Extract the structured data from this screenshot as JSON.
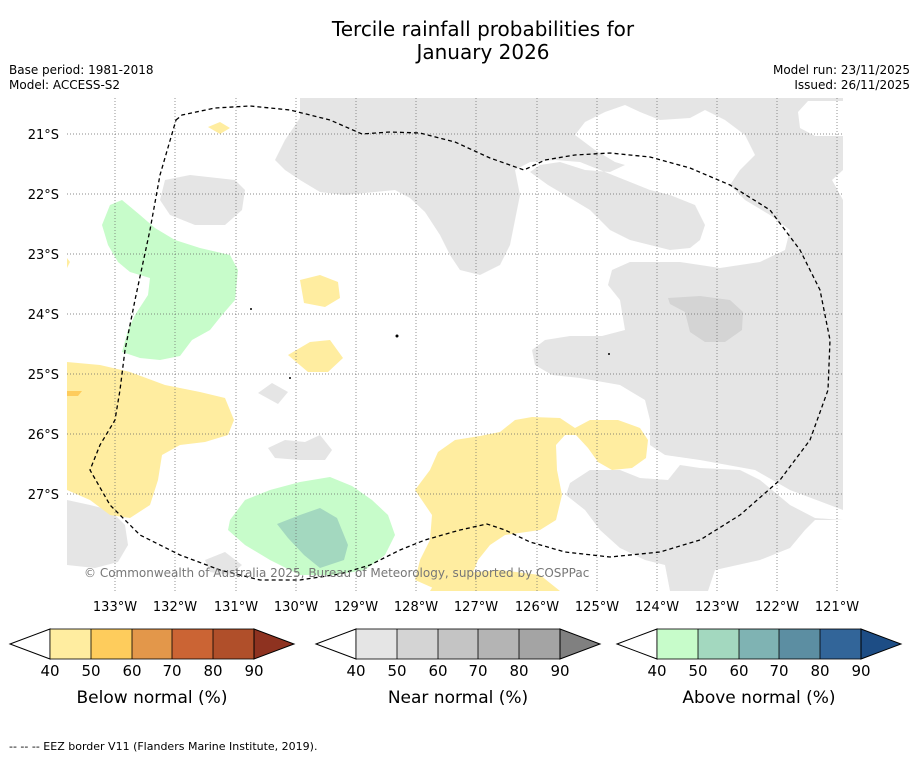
{
  "title_line1": "Tercile rainfall probabilities for",
  "title_line2": "January 2026",
  "base_period": "Base period: 1981-2018",
  "model": "Model: ACCESS-S2",
  "model_run": "Model run: 23/11/2025",
  "issued": "Issued: 26/11/2025",
  "copyright": "© Commonwealth of Australia 2025, Bureau of Meteorology, supported by COSPPac",
  "lat_labels": [
    "21°S",
    "22°S",
    "23°S",
    "24°S",
    "25°S",
    "26°S",
    "27°S"
  ],
  "lon_labels": [
    "133°W",
    "132°W",
    "131°W",
    "130°W",
    "129°W",
    "128°W",
    "127°W",
    "126°W",
    "125°W",
    "124°W",
    "123°W",
    "122°W",
    "121°W"
  ],
  "colorbars": [
    {
      "label": "Below normal (%)",
      "ticks": [
        "40",
        "50",
        "60",
        "70",
        "80",
        "90"
      ],
      "colors": [
        "#ffeda0",
        "#fecc5c",
        "#e3974a",
        "#cb6434",
        "#b04f2a",
        "#8e3220"
      ]
    },
    {
      "label": "Near normal (%)",
      "ticks": [
        "40",
        "50",
        "60",
        "70",
        "80",
        "90"
      ],
      "colors": [
        "#e5e5e5",
        "#d4d4d4",
        "#c4c4c4",
        "#b4b4b4",
        "#a4a4a4",
        "#808080"
      ]
    },
    {
      "label": "Above normal (%)",
      "ticks": [
        "40",
        "50",
        "60",
        "70",
        "80",
        "90"
      ],
      "colors": [
        "#c7fcca",
        "#a3d8bf",
        "#7fb3b3",
        "#5c8ea2",
        "#326599",
        "#1d4d85"
      ]
    }
  ],
  "footer": "--  --  -- EEZ border V11 (Flanders Marine Institute, 2019)."
}
